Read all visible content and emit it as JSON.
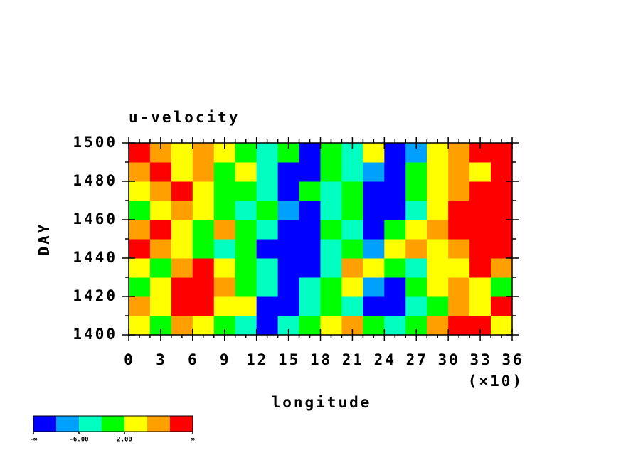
{
  "chart_data": {
    "type": "heatmap",
    "title": "u-velocity",
    "xlabel": "longitude",
    "x_multiplier": "(×10)",
    "ylabel": "DAY",
    "xlim": [
      0,
      36
    ],
    "ylim": [
      1400,
      1500
    ],
    "xticks": [
      0,
      3,
      6,
      9,
      12,
      15,
      18,
      21,
      24,
      27,
      30,
      33,
      36
    ],
    "xminorticks": [
      1,
      2,
      4,
      5,
      7,
      8,
      10,
      11,
      13,
      14,
      16,
      17,
      19,
      20,
      22,
      23,
      25,
      26,
      28,
      29,
      31,
      32,
      34,
      35
    ],
    "yticks": [
      1400,
      1420,
      1440,
      1460,
      1480,
      1500
    ],
    "yminorticks": [
      1410,
      1430,
      1450,
      1470,
      1490
    ],
    "z": [
      [
        4,
        0,
        8,
        4,
        0,
        -4,
        -12,
        -4,
        0,
        4,
        8,
        0,
        -4,
        0,
        8,
        12,
        12,
        4
      ],
      [
        8,
        4,
        12,
        12,
        4,
        4,
        -12,
        -12,
        -4,
        0,
        -4,
        -12,
        -12,
        -4,
        0,
        8,
        4,
        12
      ],
      [
        0,
        4,
        12,
        12,
        8,
        0,
        -4,
        -12,
        -4,
        0,
        4,
        -8,
        -12,
        0,
        4,
        8,
        4,
        0
      ],
      [
        4,
        0,
        8,
        12,
        4,
        0,
        -4,
        -12,
        -12,
        -4,
        8,
        4,
        0,
        -4,
        4,
        4,
        12,
        8
      ],
      [
        12,
        8,
        4,
        0,
        -4,
        0,
        -12,
        -12,
        -12,
        -4,
        0,
        -8,
        4,
        8,
        4,
        8,
        12,
        12
      ],
      [
        8,
        12,
        4,
        0,
        8,
        0,
        -4,
        -12,
        -12,
        0,
        -4,
        -12,
        0,
        4,
        8,
        12,
        12,
        12
      ],
      [
        0,
        4,
        8,
        4,
        0,
        -4,
        0,
        -8,
        -12,
        -4,
        0,
        -12,
        -12,
        -4,
        4,
        12,
        12,
        12
      ],
      [
        4,
        8,
        12,
        4,
        0,
        0,
        -4,
        -12,
        0,
        -4,
        0,
        -12,
        -12,
        0,
        4,
        8,
        12,
        12
      ],
      [
        8,
        12,
        4,
        8,
        0,
        4,
        -4,
        -12,
        -12,
        0,
        -4,
        -8,
        -12,
        0,
        4,
        8,
        4,
        12
      ],
      [
        12,
        8,
        4,
        8,
        4,
        0,
        -4,
        0,
        -12,
        0,
        -4,
        4,
        -12,
        -8,
        4,
        8,
        12,
        12
      ]
    ],
    "colorbar": {
      "colors": [
        "#0000ff",
        "#00a0ff",
        "#00ffc0",
        "#00ff00",
        "#ffff00",
        "#ffa000",
        "#ff0000"
      ],
      "boundaries": [
        null,
        -10,
        -6,
        -2,
        2,
        6,
        10,
        null
      ],
      "labels": [
        "-∞",
        null,
        "-6.00",
        null,
        "2.00",
        null,
        null,
        "∞"
      ]
    }
  }
}
